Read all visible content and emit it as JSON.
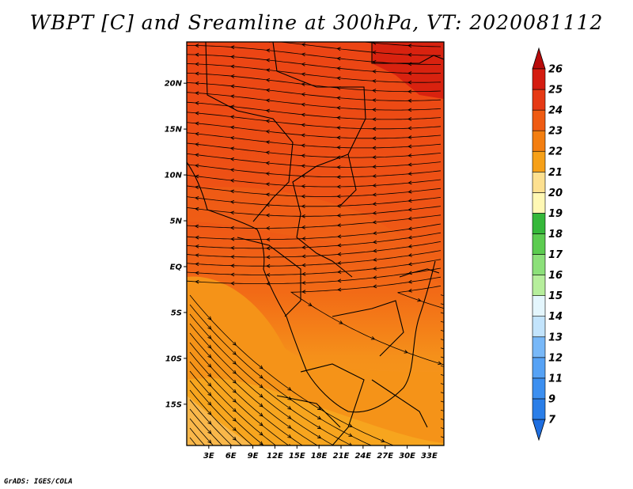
{
  "title": "WBPT [C] and Sreamline at 300hPa, VT: 2020081112",
  "credit": "GrADS: IGES/COLA",
  "map": {
    "lat_ticks": [
      "20N",
      "15N",
      "10N",
      "5N",
      "EQ",
      "5S",
      "10S",
      "15S"
    ],
    "lon_ticks": [
      "3E",
      "6E",
      "9E",
      "12E",
      "15E",
      "18E",
      "21E",
      "24E",
      "27E",
      "30E",
      "33E"
    ],
    "lat_range": [
      -19.5,
      24.5
    ],
    "lon_range": [
      0,
      35
    ]
  },
  "colorbar": {
    "labels": [
      "7",
      "9",
      "11",
      "12",
      "13",
      "14",
      "15",
      "16",
      "17",
      "18",
      "19",
      "20",
      "21",
      "22",
      "23",
      "24",
      "25",
      "26"
    ],
    "colors": [
      "#1e6ee0",
      "#2a7ee8",
      "#3c8ff0",
      "#56a2f5",
      "#78b8f8",
      "#9ccdfa",
      "#c3e4fc",
      "#e4f6fd",
      "#b6ee9c",
      "#8ce07a",
      "#5ccc50",
      "#35b83a",
      "#fff8b4",
      "#fde090",
      "#f8c44a",
      "#f6a018",
      "#f37e10",
      "#ef5b12",
      "#e63914",
      "#d41c10",
      "#b80b0b"
    ]
  }
}
